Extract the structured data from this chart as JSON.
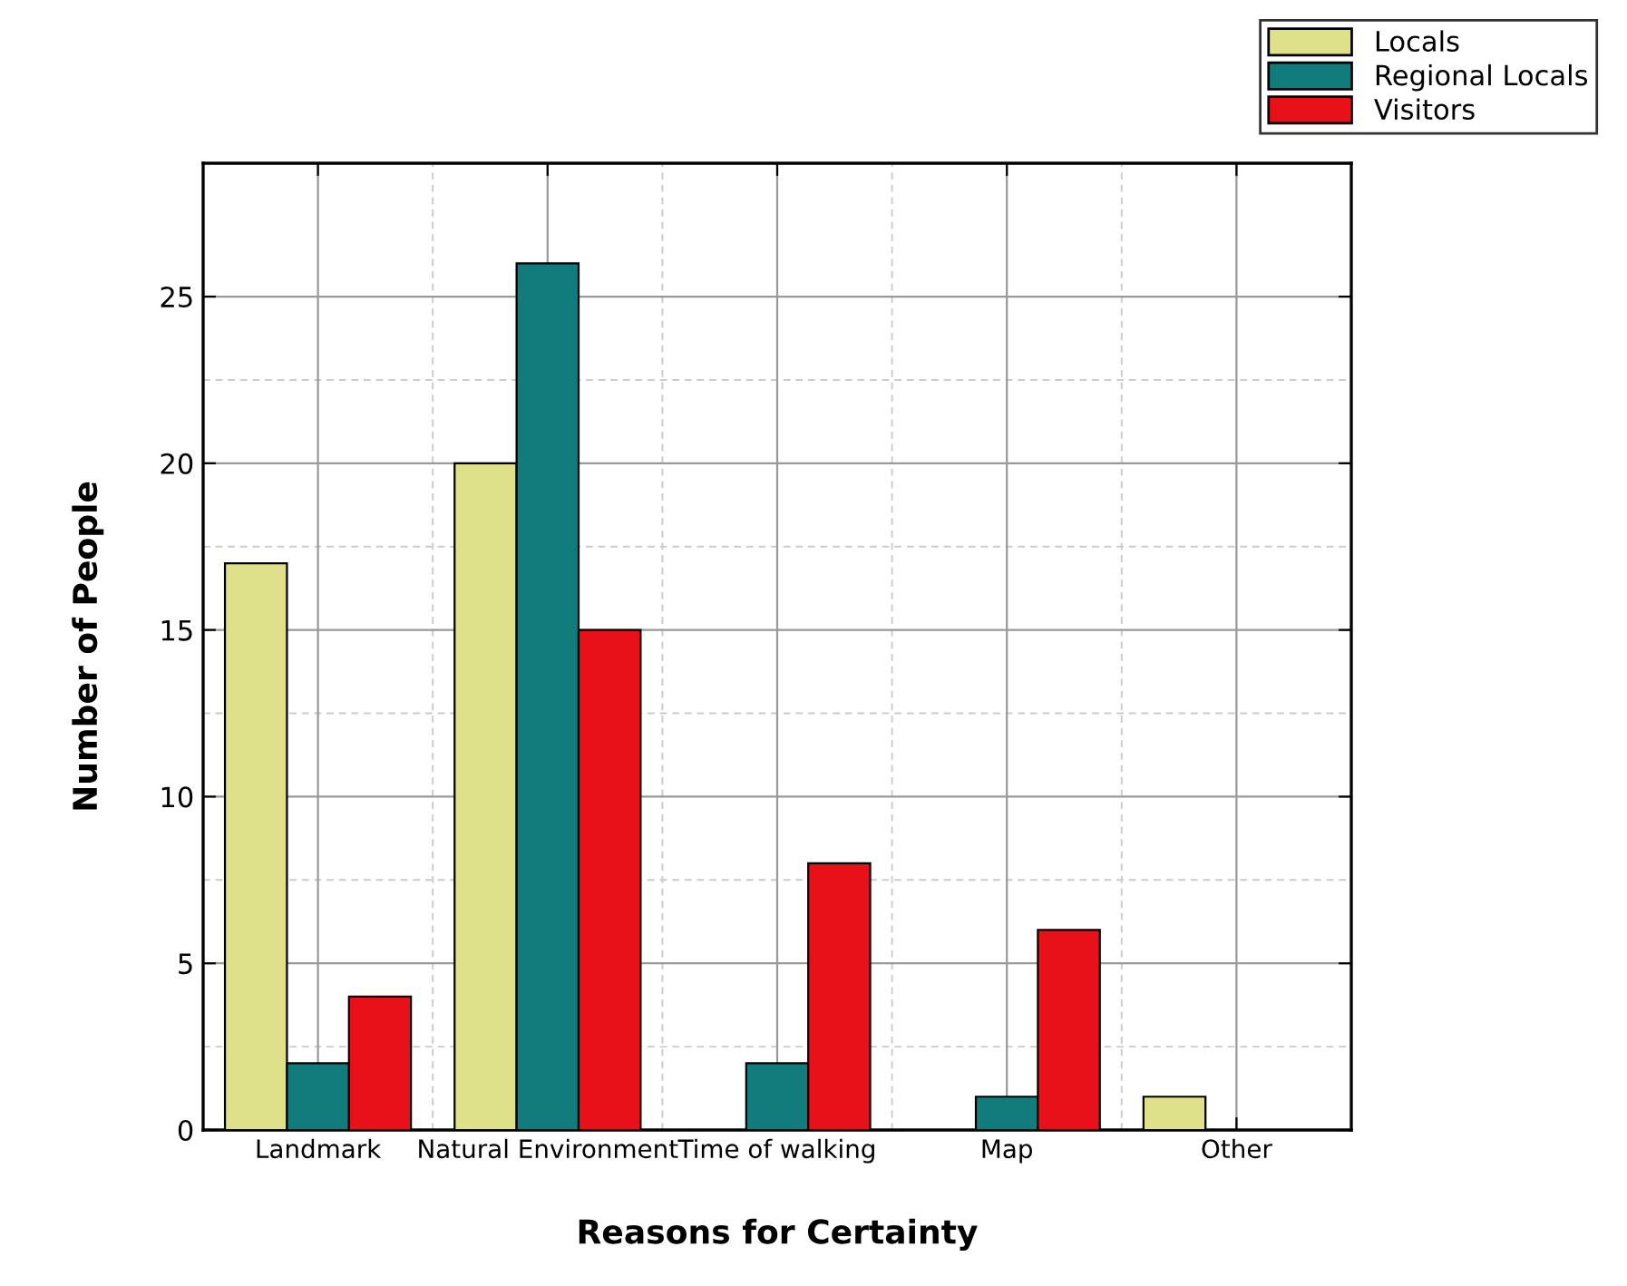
{
  "chart_data": {
    "type": "bar",
    "xlabel": "Reasons for Certainty",
    "ylabel": "Number of People",
    "categories": [
      "Landmark",
      "Natural Environment",
      "Time of walking",
      "Map",
      "Other"
    ],
    "series": [
      {
        "name": "Locals",
        "color": "#dfe08a",
        "values": [
          17,
          20,
          0,
          0,
          1
        ]
      },
      {
        "name": "Regional Locals",
        "color": "#127c7c",
        "values": [
          2,
          26,
          2,
          1,
          0
        ]
      },
      {
        "name": "Visitors",
        "color": "#e8111a",
        "values": [
          4,
          15,
          8,
          6,
          0
        ]
      }
    ],
    "ylim": [
      0,
      29
    ],
    "yticks": [
      0,
      5,
      10,
      15,
      20,
      25
    ],
    "grid": true,
    "legend": "top right"
  }
}
